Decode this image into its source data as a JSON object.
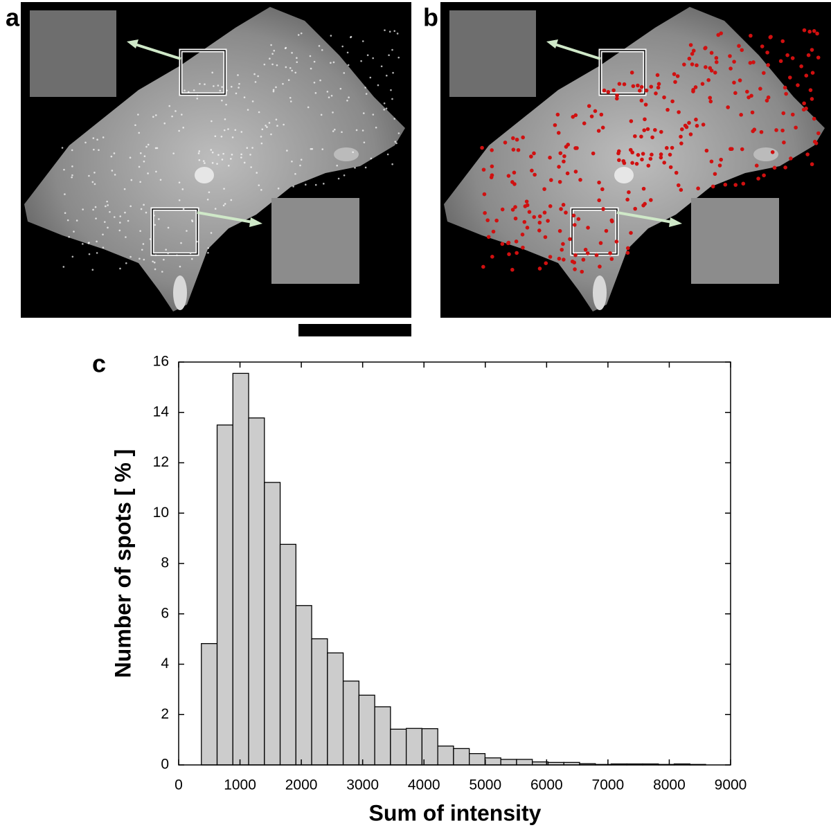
{
  "panel_labels": [
    "a",
    "b",
    "c"
  ],
  "chart_data": {
    "type": "histogram",
    "x_label": "Sum of intensity",
    "y_label": "Number of spots [ % ]",
    "bins": [
      370,
      627,
      884,
      1141,
      1398,
      1655,
      1912,
      2169,
      2426,
      2683,
      2940,
      3197,
      3454,
      3711,
      3968,
      4225,
      4482,
      4739,
      4996,
      5253,
      5510,
      5767,
      6024,
      6281,
      6538,
      6795,
      7052,
      7309,
      7566,
      7823,
      8080,
      8337,
      8594
    ],
    "values": [
      4.82,
      13.5,
      15.55,
      13.78,
      11.22,
      8.76,
      6.33,
      5.01,
      4.45,
      3.33,
      2.77,
      2.31,
      1.42,
      1.45,
      1.44,
      0.75,
      0.65,
      0.45,
      0.28,
      0.22,
      0.22,
      0.12,
      0.1,
      0.1,
      0.05,
      0.02,
      0.04,
      0.04,
      0.04,
      0.02,
      0.04,
      0.02
    ],
    "color": "#cccccc",
    "xlim": [
      0,
      9000
    ],
    "xticks": [
      0,
      1000,
      2000,
      3000,
      4000,
      5000,
      6000,
      7000,
      8000,
      9000
    ],
    "ylim": [
      0,
      16
    ],
    "yticks": [
      0,
      2,
      4,
      6,
      8,
      10,
      12,
      14,
      16
    ]
  }
}
